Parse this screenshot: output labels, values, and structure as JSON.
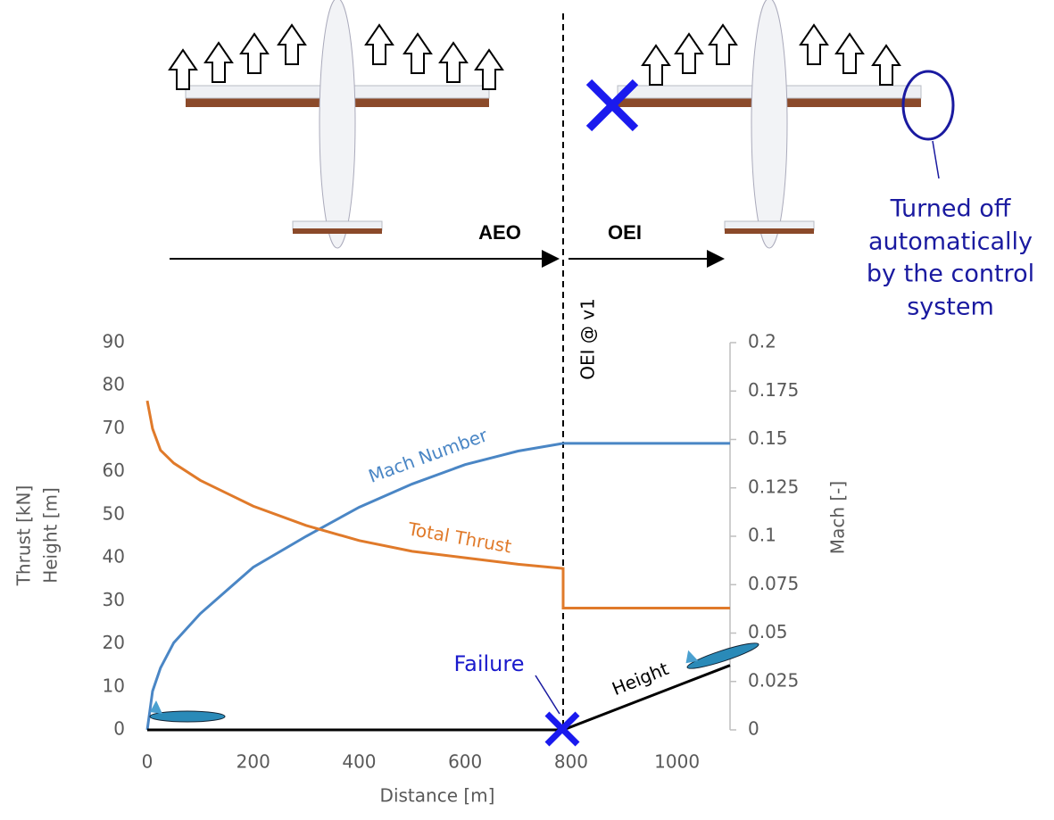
{
  "chart_data": {
    "type": "line",
    "x_label": "Distance [m]",
    "y_label": [
      "Thrust [kN]",
      "Height [m]"
    ],
    "y2_label": "Mach [-]",
    "x": [
      0,
      10,
      25,
      50,
      100,
      200,
      300,
      400,
      500,
      600,
      700,
      785,
      785,
      1100
    ],
    "series": [
      {
        "name": "Mach Number",
        "color": "#4a86c5",
        "axis": "y2",
        "values": [
          0,
          0.02,
          0.032,
          0.045,
          0.06,
          0.084,
          0.1,
          0.115,
          0.127,
          0.137,
          0.144,
          0.148,
          0.148,
          0.148
        ]
      },
      {
        "name": "Total Thrust",
        "color": "#e07a2a",
        "values": [
          76.5,
          70,
          65,
          62,
          58,
          52,
          47.5,
          44,
          41.5,
          40,
          38.5,
          37.5,
          28.3,
          28.3
        ]
      },
      {
        "name": "Height",
        "color": "#000000",
        "values": [
          0,
          0,
          0,
          0,
          0,
          0,
          0,
          0,
          0,
          0,
          0,
          0,
          0,
          15
        ]
      }
    ],
    "xlim": [
      0,
      1100
    ],
    "xticks": [
      0,
      200,
      400,
      600,
      800,
      1000
    ],
    "ylim": [
      0,
      90
    ],
    "yticks": [
      0,
      10,
      20,
      30,
      40,
      50,
      60,
      70,
      80,
      90
    ],
    "y2lim": [
      0,
      0.2
    ],
    "y2ticks": [
      0,
      0.025,
      0.05,
      0.075,
      0.1,
      0.125,
      0.15,
      0.175,
      0.2
    ],
    "annotations": {
      "failure": "Failure",
      "oei_v1": "OEI @ v1",
      "aeo": "AEO",
      "oei": "OEI",
      "turned_off": [
        "Turned off",
        "automatically",
        "by the control",
        "system"
      ]
    }
  }
}
